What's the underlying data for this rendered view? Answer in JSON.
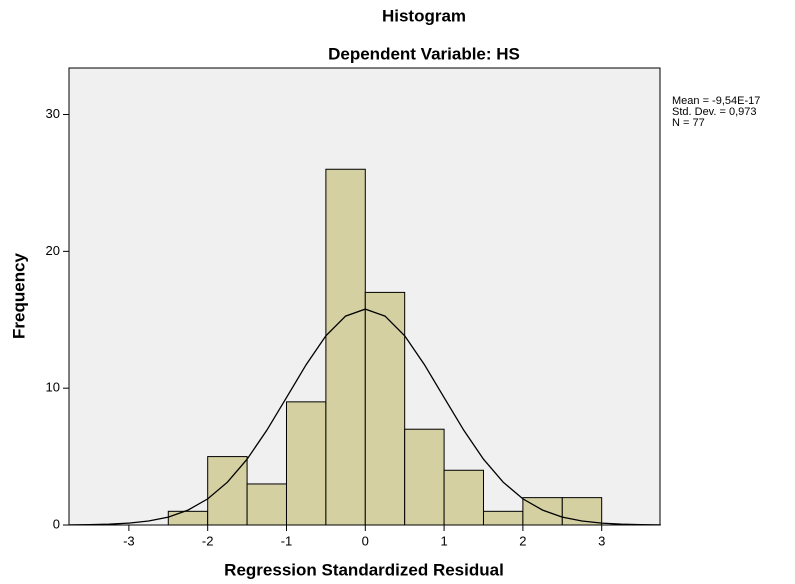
{
  "chart_data": {
    "type": "histogram",
    "title": "Histogram",
    "subtitle": "Dependent Variable: HS",
    "x_label": "Regression Standardized Residual",
    "y_label": "Frequency",
    "bins": [
      -2.5,
      -2,
      -1.5,
      -1,
      -0.5,
      0,
      0.5,
      1,
      1.5,
      2,
      2.5,
      3
    ],
    "values": [
      1,
      5,
      3,
      9,
      26,
      17,
      7,
      4,
      1,
      2,
      2
    ],
    "color": "#d5d0a2",
    "background": "#f0f0f0",
    "xlim": [
      -3.76,
      3.74
    ],
    "ylim": [
      0,
      33.4
    ],
    "xticks": [
      -3,
      -2,
      -1,
      0,
      1,
      2,
      3
    ],
    "yticks": [
      0,
      10,
      20,
      30
    ],
    "grid": false,
    "curve": {
      "x": [
        -3.75,
        -3.5,
        -3.25,
        -3,
        -2.75,
        -2.5,
        -2.25,
        -2,
        -1.75,
        -1.5,
        -1.25,
        -1,
        -0.75,
        -0.5,
        -0.25,
        0,
        0.25,
        0.5,
        0.75,
        1,
        1.25,
        1.5,
        1.75,
        2,
        2.25,
        2.5,
        2.75,
        3,
        3.25,
        3.5,
        3.75
      ],
      "values": [
        0.01,
        0.02,
        0.06,
        0.14,
        0.29,
        0.58,
        1.09,
        1.91,
        3.13,
        4.81,
        6.92,
        9.31,
        11.72,
        13.83,
        15.27,
        15.78,
        15.27,
        13.83,
        11.72,
        9.31,
        6.92,
        4.81,
        3.13,
        1.91,
        1.09,
        0.58,
        0.29,
        0.14,
        0.06,
        0.02,
        0.01
      ]
    },
    "stats": [
      "Mean = -9,54E-17",
      "Std. Dev. = 0,973",
      "N = 77"
    ]
  }
}
